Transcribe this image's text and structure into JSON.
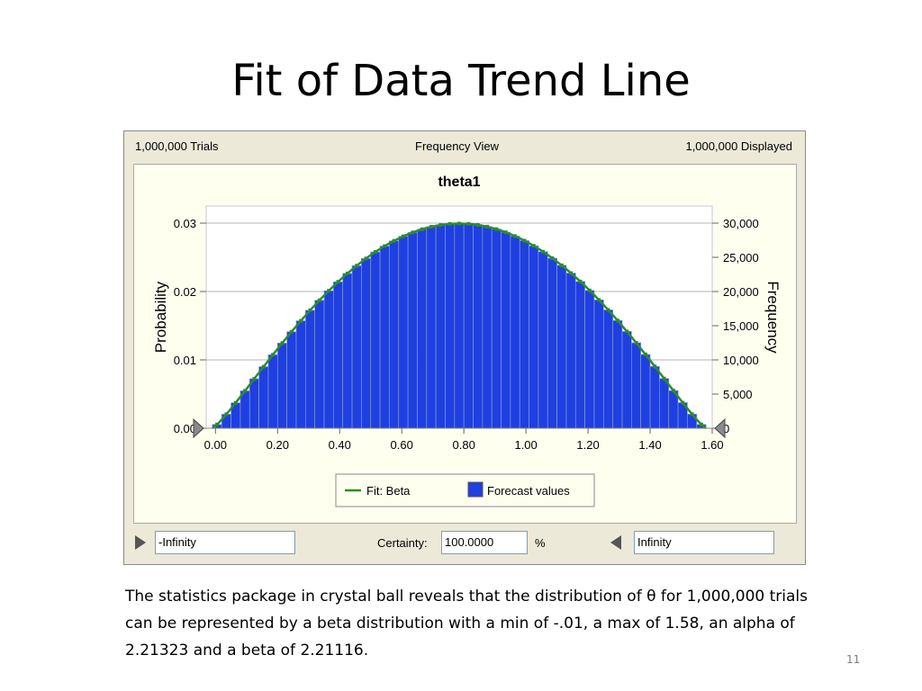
{
  "slide": {
    "title": "Fit of Data Trend Line",
    "caption": "The statistics package in crystal ball reveals that the distribution of θ for 1,000,000 trials can be represented by a beta distribution with a min of -.01, a max of 1.58, an alpha of 2.21323 and a beta of 2.21116.",
    "page_number": "11"
  },
  "panel": {
    "trials": "1,000,000 Trials",
    "view": "Frequency View",
    "displayed": "1,000,000 Displayed",
    "lower_field": "-Infinity",
    "certainty_label": "Certainty:",
    "certainty_value": "100.0000",
    "percent": "%",
    "upper_field": "Infinity"
  },
  "chart_data": {
    "type": "bar",
    "title": "theta1",
    "xlabel": "",
    "ylabel": "Probability",
    "y2label": "Frequency",
    "xlim": [
      -0.03,
      1.6
    ],
    "ylim": [
      0,
      0.0325
    ],
    "y2lim": [
      0,
      32500
    ],
    "x_ticks": [
      "0.00",
      "0.20",
      "0.40",
      "0.60",
      "0.80",
      "1.00",
      "1.20",
      "1.40",
      "1.60"
    ],
    "y_ticks": [
      "0.00",
      "0.01",
      "0.02",
      "0.03"
    ],
    "y2_ticks": [
      "0",
      "5,000",
      "10,000",
      "15,000",
      "20,000",
      "25,000",
      "30,000"
    ],
    "bin_width": 0.03,
    "fit": {
      "distribution": "beta",
      "min": -0.01,
      "max": 1.58,
      "alpha": 2.21323,
      "beta": 2.21116
    },
    "series": [
      {
        "name": "Fit: Beta",
        "type": "line",
        "color": "#2e8b2e"
      },
      {
        "name": "Forecast values",
        "type": "bar",
        "color": "#1f3fe0"
      }
    ],
    "legend_position": "bottom",
    "grid": "horizontal"
  }
}
